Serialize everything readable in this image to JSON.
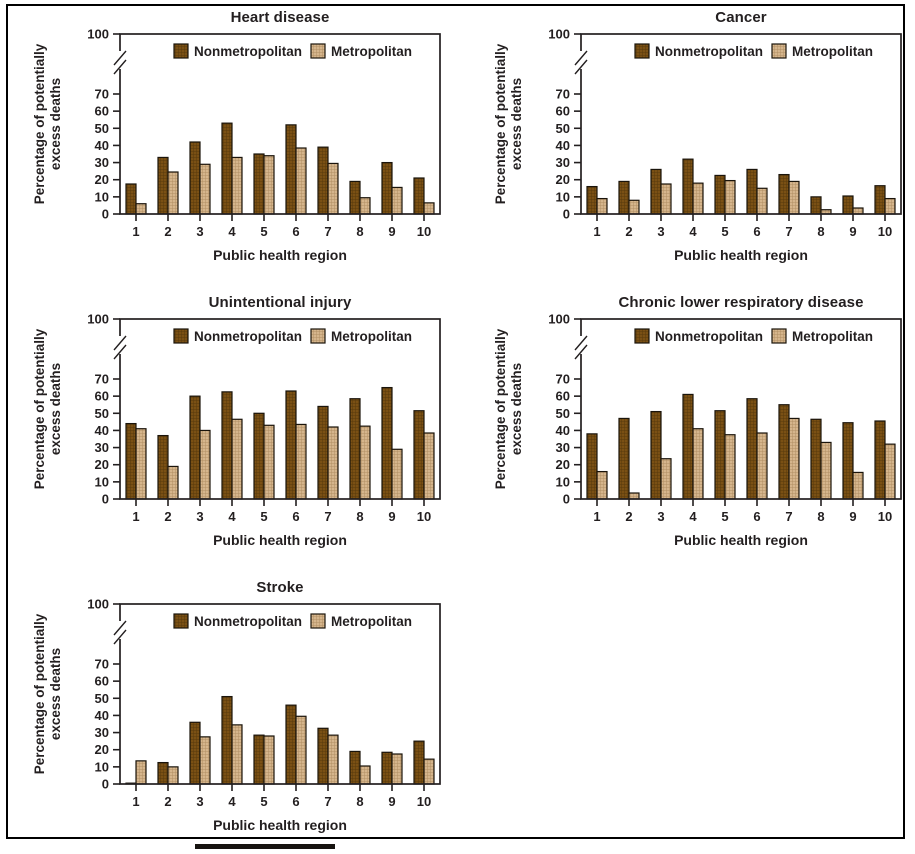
{
  "figure": {
    "y_axis_label_line1": "Percentage of potentially",
    "y_axis_label_line2": "excess deaths",
    "x_axis_label": "Public health region",
    "legend": [
      "Nonmetropolitan",
      "Metropolitan"
    ],
    "y_ticks": [
      0,
      10,
      20,
      30,
      40,
      50,
      60,
      70
    ],
    "y_top_tick": 100,
    "colors": {
      "nonmetropolitan_fill": "#7A5014",
      "nonmetropolitan_hatch": "#54380B",
      "metropolitan_fill": "#D5B58C",
      "metropolitan_hatch": "#AD8C5F",
      "bar_outline": "#1A140B",
      "axis": "#231F20",
      "text": "#231F20",
      "page_border": "#000000"
    }
  },
  "chart_data": [
    {
      "type": "bar",
      "title": "Heart disease",
      "xlabel": "Public health region",
      "ylabel": "Percentage of potentially excess deaths",
      "ylim": [
        0,
        100
      ],
      "axis_break_between": [
        70,
        100
      ],
      "grid": false,
      "legend_position": "top-inside",
      "categories": [
        "1",
        "2",
        "3",
        "4",
        "5",
        "6",
        "7",
        "8",
        "9",
        "10"
      ],
      "series": [
        {
          "name": "Nonmetropolitan",
          "values": [
            17.5,
            33,
            42,
            53,
            35,
            52,
            39,
            19,
            30,
            21
          ]
        },
        {
          "name": "Metropolitan",
          "values": [
            6,
            24.5,
            29,
            33,
            34,
            38.5,
            29.5,
            9.5,
            15.5,
            6.5
          ]
        }
      ]
    },
    {
      "type": "bar",
      "title": "Cancer",
      "xlabel": "Public health region",
      "ylabel": "Percentage of potentially excess deaths",
      "ylim": [
        0,
        100
      ],
      "axis_break_between": [
        70,
        100
      ],
      "grid": false,
      "legend_position": "top-inside",
      "categories": [
        "1",
        "2",
        "3",
        "4",
        "5",
        "6",
        "7",
        "8",
        "9",
        "10"
      ],
      "series": [
        {
          "name": "Nonmetropolitan",
          "values": [
            16,
            19,
            26,
            32,
            22.5,
            26,
            23,
            10,
            10.5,
            16.5
          ]
        },
        {
          "name": "Metropolitan",
          "values": [
            9,
            8,
            17.5,
            18,
            19.5,
            15,
            19,
            2.5,
            3.5,
            9
          ]
        }
      ]
    },
    {
      "type": "bar",
      "title": "Unintentional injury",
      "xlabel": "Public health region",
      "ylabel": "Percentage of potentially excess deaths",
      "ylim": [
        0,
        100
      ],
      "axis_break_between": [
        70,
        100
      ],
      "grid": false,
      "legend_position": "top-inside",
      "categories": [
        "1",
        "2",
        "3",
        "4",
        "5",
        "6",
        "7",
        "8",
        "9",
        "10"
      ],
      "series": [
        {
          "name": "Nonmetropolitan",
          "values": [
            44,
            37,
            60,
            62.5,
            50,
            63,
            54,
            58.5,
            65,
            51.5
          ]
        },
        {
          "name": "Metropolitan",
          "values": [
            41,
            19,
            40,
            46.5,
            43,
            43.5,
            42,
            42.5,
            29,
            38.5
          ]
        }
      ]
    },
    {
      "type": "bar",
      "title": "Chronic lower respiratory disease",
      "xlabel": "Public health region",
      "ylabel": "Percentage of potentially excess deaths",
      "ylim": [
        0,
        100
      ],
      "axis_break_between": [
        70,
        100
      ],
      "grid": false,
      "legend_position": "top-inside",
      "categories": [
        "1",
        "2",
        "3",
        "4",
        "5",
        "6",
        "7",
        "8",
        "9",
        "10"
      ],
      "series": [
        {
          "name": "Nonmetropolitan",
          "values": [
            38,
            47,
            51,
            61,
            51.5,
            58.5,
            55,
            46.5,
            44.5,
            45.5
          ]
        },
        {
          "name": "Metropolitan",
          "values": [
            16,
            3.5,
            23.5,
            41,
            37.5,
            38.5,
            47,
            33,
            15.5,
            32
          ]
        }
      ]
    },
    {
      "type": "bar",
      "title": "Stroke",
      "xlabel": "Public health region",
      "ylabel": "Percentage of potentially excess deaths",
      "ylim": [
        0,
        100
      ],
      "axis_break_between": [
        70,
        100
      ],
      "grid": false,
      "legend_position": "top-inside",
      "categories": [
        "1",
        "2",
        "3",
        "4",
        "5",
        "6",
        "7",
        "8",
        "9",
        "10"
      ],
      "series": [
        {
          "name": "Nonmetropolitan",
          "values": [
            0.5,
            12.5,
            36,
            51,
            28.5,
            46,
            32.5,
            19,
            18.5,
            25
          ]
        },
        {
          "name": "Metropolitan",
          "values": [
            13.5,
            10,
            27.5,
            34.5,
            28,
            39.5,
            28.5,
            10.5,
            17.5,
            14.5
          ]
        }
      ]
    }
  ]
}
